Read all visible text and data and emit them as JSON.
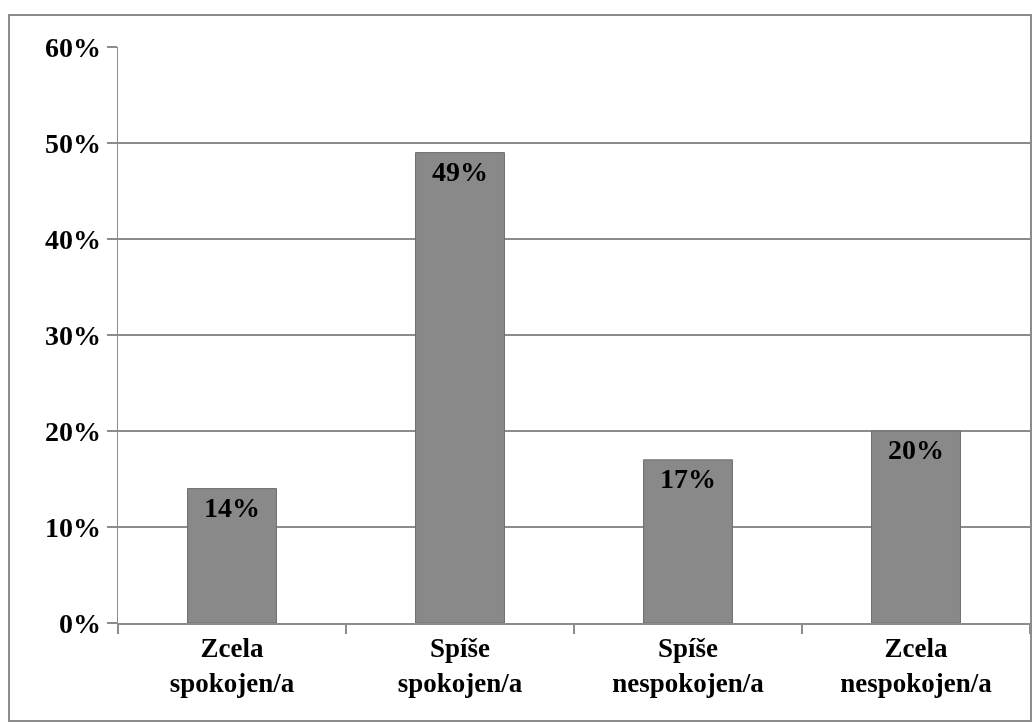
{
  "chart_data": {
    "type": "bar",
    "categories": [
      "Zcela spokojen/a",
      "Spíše spokojen/a",
      "Spíše nespokojen/a",
      "Zcela nespokojen/a"
    ],
    "values": [
      14,
      49,
      17,
      20
    ],
    "value_labels": [
      "14%",
      "49%",
      "17%",
      "20%"
    ],
    "color": "#898989",
    "ylim": [
      0,
      60
    ],
    "yticks": [
      {
        "value": 0,
        "label": "0%"
      },
      {
        "value": 10,
        "label": "10%"
      },
      {
        "value": 20,
        "label": "20%"
      },
      {
        "value": 30,
        "label": "30%"
      },
      {
        "value": 40,
        "label": "40%"
      },
      {
        "value": 50,
        "label": "50%"
      },
      {
        "value": 60,
        "label": "60%"
      }
    ],
    "grid": "y"
  }
}
